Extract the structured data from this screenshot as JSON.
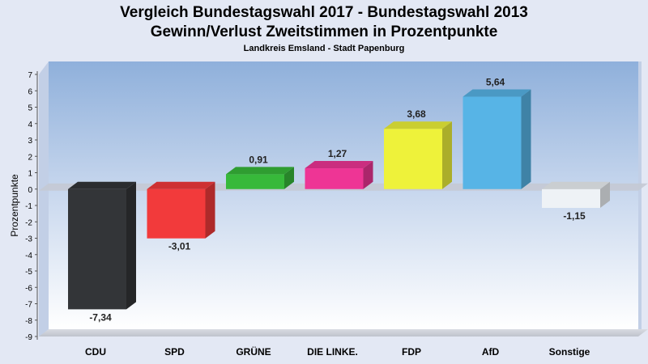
{
  "chart_data": {
    "type": "bar",
    "title": "Vergleich Bundestagswahl 2017 - Bundestagswahl 2013",
    "subtitle": "Gewinn/Verlust Zweitstimmen in Prozentpunkte",
    "subsubtitle": "Landkreis Emsland - Stadt Papenburg",
    "ylabel": "Prozentpunkte",
    "xlabel": "",
    "ylim": [
      -9,
      7
    ],
    "yticks": [
      7,
      6,
      5,
      4,
      3,
      2,
      1,
      0,
      -1,
      -2,
      -3,
      -4,
      -5,
      -6,
      -7,
      -8,
      -9
    ],
    "grid": false,
    "categories": [
      "CDU",
      "SPD",
      "GRÜNE",
      "DIE LINKE.",
      "FDP",
      "AfD",
      "Sonstige"
    ],
    "values": [
      -7.34,
      -3.01,
      0.91,
      1.27,
      3.68,
      5.64,
      -1.15
    ],
    "value_labels": [
      "-7,34",
      "-3,01",
      "0,91",
      "1,27",
      "3,68",
      "5,64",
      "-1,15"
    ],
    "colors": [
      "#333538",
      "#f23a3b",
      "#37b93a",
      "#ee3595",
      "#eef23a",
      "#57b4e6",
      "#eef2f6"
    ]
  }
}
